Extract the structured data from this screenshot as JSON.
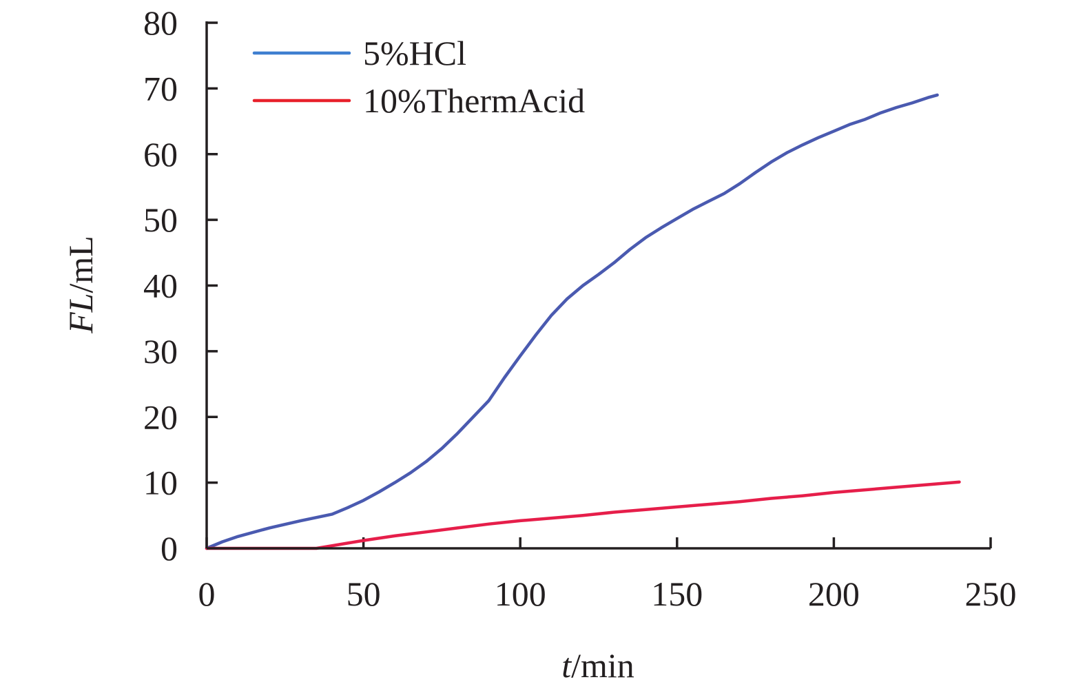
{
  "chart_data": {
    "type": "line",
    "xlabel_var": "t",
    "xlabel_unit": "/min",
    "ylabel_var": "FL",
    "ylabel_unit": "/mL",
    "xlim": [
      0,
      250
    ],
    "ylim": [
      0,
      80
    ],
    "x_ticks": [
      "0",
      "50",
      "100",
      "150",
      "200",
      "250"
    ],
    "y_ticks": [
      "0",
      "10",
      "20",
      "30",
      "40",
      "50",
      "60",
      "70",
      "80"
    ],
    "legend_position": "top-left",
    "grid": false,
    "series": [
      {
        "name": "5%HCl",
        "color": "#4a5ab0",
        "legend_color": "#3f7fd0",
        "x": [
          0,
          5,
          10,
          20,
          30,
          40,
          45,
          50,
          55,
          60,
          65,
          70,
          75,
          80,
          85,
          90,
          95,
          100,
          105,
          110,
          115,
          120,
          125,
          130,
          135,
          140,
          145,
          150,
          155,
          160,
          165,
          170,
          175,
          180,
          185,
          190,
          195,
          200,
          205,
          210,
          215,
          220,
          225,
          230,
          233
        ],
        "y": [
          0,
          1.0,
          1.8,
          3.1,
          4.2,
          5.2,
          6.2,
          7.3,
          8.6,
          10.0,
          11.5,
          13.2,
          15.2,
          17.5,
          20.0,
          22.5,
          26.0,
          29.3,
          32.5,
          35.5,
          38.0,
          40.0,
          41.7,
          43.5,
          45.5,
          47.3,
          48.8,
          50.2,
          51.6,
          52.8,
          54.0,
          55.5,
          57.2,
          58.8,
          60.2,
          61.4,
          62.5,
          63.5,
          64.5,
          65.3,
          66.3,
          67.1,
          67.8,
          68.6,
          69.0
        ]
      },
      {
        "name": "10%ThermAcid",
        "color": "#e61e4a",
        "legend_color": "#e8212b",
        "x": [
          0,
          10,
          20,
          30,
          35,
          40,
          50,
          60,
          70,
          80,
          90,
          100,
          110,
          120,
          130,
          140,
          150,
          160,
          170,
          180,
          190,
          200,
          210,
          220,
          230,
          240
        ],
        "y": [
          0,
          0,
          0,
          0,
          0,
          0.4,
          1.2,
          1.9,
          2.5,
          3.1,
          3.7,
          4.2,
          4.6,
          5.0,
          5.5,
          5.9,
          6.3,
          6.7,
          7.1,
          7.6,
          8.0,
          8.5,
          8.9,
          9.3,
          9.7,
          10.1
        ]
      }
    ]
  }
}
